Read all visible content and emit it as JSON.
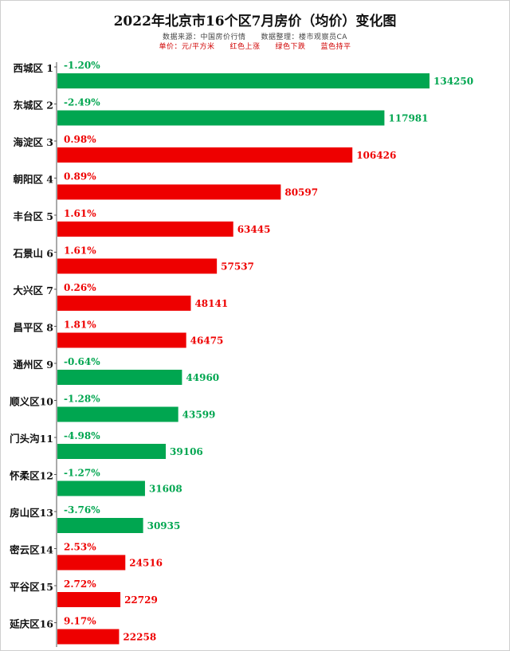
{
  "header": {
    "title": "2022年北京市16个区7月房价（均价）变化图",
    "source_line": "数据来源：中国房价行情　　数据整理：楼市观察员CA",
    "legend_line": "单价：元/平方米　　红色上涨　　绿色下跌　　蓝色持平"
  },
  "colors": {
    "up": "#ee0000",
    "down": "#00a650",
    "flat": "#1f5fd6"
  },
  "chart_data": {
    "type": "bar",
    "orientation": "horizontal",
    "title": "2022年北京市16个区7月房价（均价）变化图",
    "unit": "元/平方米",
    "categories": [
      "西城区 1",
      "东城区 2",
      "海淀区 3",
      "朝阳区 4",
      "丰台区 5",
      "石景山 6",
      "大兴区 7",
      "昌平区 8",
      "通州区 9",
      "顺义区10",
      "门头沟11",
      "怀柔区12",
      "房山区13",
      "密云区14",
      "平谷区15",
      "延庆区16"
    ],
    "values": [
      134250,
      117981,
      106426,
      80597,
      63445,
      57537,
      48141,
      46475,
      44960,
      43599,
      39106,
      31608,
      30935,
      24516,
      22729,
      22258
    ],
    "change_labels": [
      "-1.20%",
      "-2.49%",
      "0.98%",
      "0.89%",
      "1.61%",
      "1.61%",
      "0.26%",
      "1.81%",
      "-0.64%",
      "-1.28%",
      "-4.98%",
      "-1.27%",
      "-3.76%",
      "2.53%",
      "2.72%",
      "9.17%"
    ],
    "change_values": [
      -1.2,
      -2.49,
      0.98,
      0.89,
      1.61,
      1.61,
      0.26,
      1.81,
      -0.64,
      -1.28,
      -4.98,
      -1.27,
      -3.76,
      2.53,
      2.72,
      9.17
    ],
    "xlim": [
      0,
      134250
    ]
  }
}
